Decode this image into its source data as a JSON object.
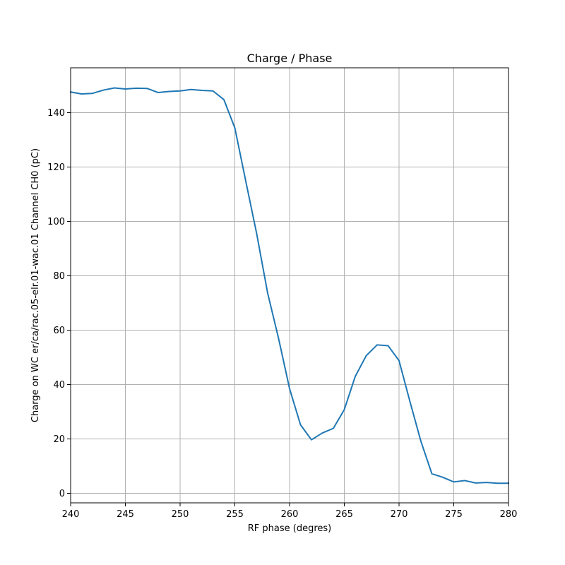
{
  "chart_data": {
    "type": "line",
    "title": "Charge / Phase",
    "xlabel": "RF phase (degres)",
    "ylabel": "Charge on WC er/ca/rac.05-elr.01-wac.01 Channel CH0 (pC)",
    "xlim": [
      240,
      280
    ],
    "ylim": [
      -3.5,
      156.5
    ],
    "xticks": [
      240,
      245,
      250,
      255,
      260,
      265,
      270,
      275,
      280
    ],
    "yticks": [
      0,
      20,
      40,
      60,
      80,
      100,
      120,
      140
    ],
    "grid": true,
    "colors": {
      "series": "#1f77b4",
      "grid": "#b0b0b0"
    },
    "series": [
      {
        "x": [
          240,
          241,
          242,
          243,
          244,
          245,
          246,
          247,
          248,
          249,
          250,
          251,
          252,
          253,
          254,
          255,
          256,
          257,
          258,
          259,
          260,
          261,
          262,
          263,
          264,
          265,
          266,
          267,
          268,
          269,
          270,
          271,
          272,
          273,
          274,
          275,
          276,
          277,
          278,
          279,
          280
        ],
        "values": [
          147.6,
          146.9,
          147.1,
          148.3,
          149.1,
          148.7,
          149.0,
          148.9,
          147.4,
          147.8,
          148.0,
          148.5,
          148.2,
          148.0,
          144.8,
          134.4,
          114.8,
          95.4,
          73.6,
          56.9,
          38.5,
          25.2,
          19.7,
          22.2,
          23.9,
          30.8,
          43.0,
          50.6,
          54.6,
          54.3,
          48.8,
          33.7,
          19.1,
          7.2,
          5.9,
          4.2,
          4.7,
          3.8,
          4.0,
          3.7,
          3.7
        ]
      }
    ]
  }
}
